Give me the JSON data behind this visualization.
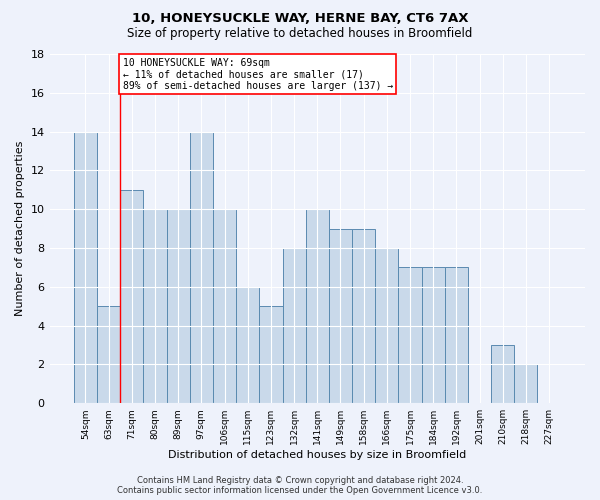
{
  "title1": "10, HONEYSUCKLE WAY, HERNE BAY, CT6 7AX",
  "title2": "Size of property relative to detached houses in Broomfield",
  "xlabel": "Distribution of detached houses by size in Broomfield",
  "ylabel": "Number of detached properties",
  "bar_labels": [
    "54sqm",
    "63sqm",
    "71sqm",
    "80sqm",
    "89sqm",
    "97sqm",
    "106sqm",
    "115sqm",
    "123sqm",
    "132sqm",
    "141sqm",
    "149sqm",
    "158sqm",
    "166sqm",
    "175sqm",
    "184sqm",
    "192sqm",
    "201sqm",
    "210sqm",
    "218sqm",
    "227sqm"
  ],
  "bar_values": [
    14,
    5,
    11,
    10,
    10,
    14,
    10,
    6,
    5,
    8,
    10,
    9,
    9,
    8,
    7,
    7,
    7,
    0,
    3,
    2,
    0
  ],
  "bar_color": "#c9d9ea",
  "bar_edge_color": "#5a8ab0",
  "background_color": "#eef2fb",
  "red_line_x": 1.5,
  "annotation_text": "10 HONEYSUCKLE WAY: 69sqm\n← 11% of detached houses are smaller (17)\n89% of semi-detached houses are larger (137) →",
  "annotation_box_color": "white",
  "annotation_box_edge_color": "red",
  "footer": "Contains HM Land Registry data © Crown copyright and database right 2024.\nContains public sector information licensed under the Open Government Licence v3.0.",
  "ylim": [
    0,
    18
  ],
  "yticks": [
    0,
    2,
    4,
    6,
    8,
    10,
    12,
    14,
    16,
    18
  ]
}
